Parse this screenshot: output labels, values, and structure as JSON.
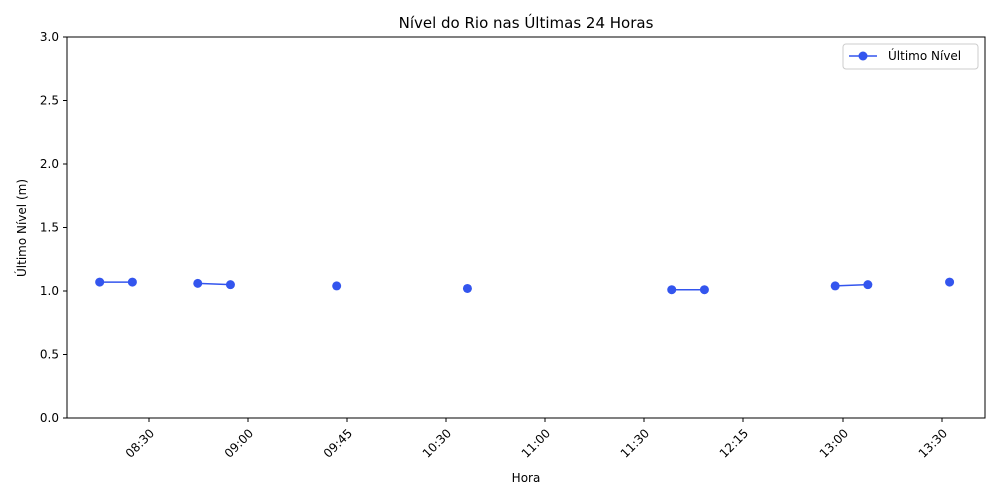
{
  "chart_data": {
    "type": "line",
    "title": "Nível do Rio nas Últimas 24 Horas",
    "xlabel": "Hora",
    "ylabel": "Último Nível (m)",
    "x_axis": {
      "unit": "minutes-of-day",
      "range": [
        "08:06",
        "13:43"
      ],
      "ticks": [
        "08:30",
        "09:00",
        "09:45",
        "10:30",
        "11:00",
        "11:30",
        "12:15",
        "13:00",
        "13:30"
      ],
      "tick_label_rotation": 45
    },
    "ylim": [
      0,
      3.0
    ],
    "yticks": [
      "0.0",
      "0.5",
      "1.0",
      "1.5",
      "2.0",
      "2.5",
      "3.0"
    ],
    "grid": false,
    "legend": {
      "position": "top-right"
    },
    "series": [
      {
        "name": "Último Nível",
        "color": "#3355ee",
        "marker": "circle",
        "segments": [
          [
            {
              "x": "08:18",
              "y": 1.07
            },
            {
              "x": "08:30",
              "y": 1.07
            }
          ],
          [
            {
              "x": "08:54",
              "y": 1.06
            },
            {
              "x": "09:06",
              "y": 1.05
            }
          ],
          [
            {
              "x": "09:45",
              "y": 1.04
            }
          ],
          [
            {
              "x": "10:33",
              "y": 1.02
            }
          ],
          [
            {
              "x": "11:48",
              "y": 1.01
            },
            {
              "x": "12:00",
              "y": 1.01
            }
          ],
          [
            {
              "x": "12:48",
              "y": 1.04
            },
            {
              "x": "13:00",
              "y": 1.05
            }
          ],
          [
            {
              "x": "13:30",
              "y": 1.07
            }
          ]
        ]
      }
    ]
  }
}
